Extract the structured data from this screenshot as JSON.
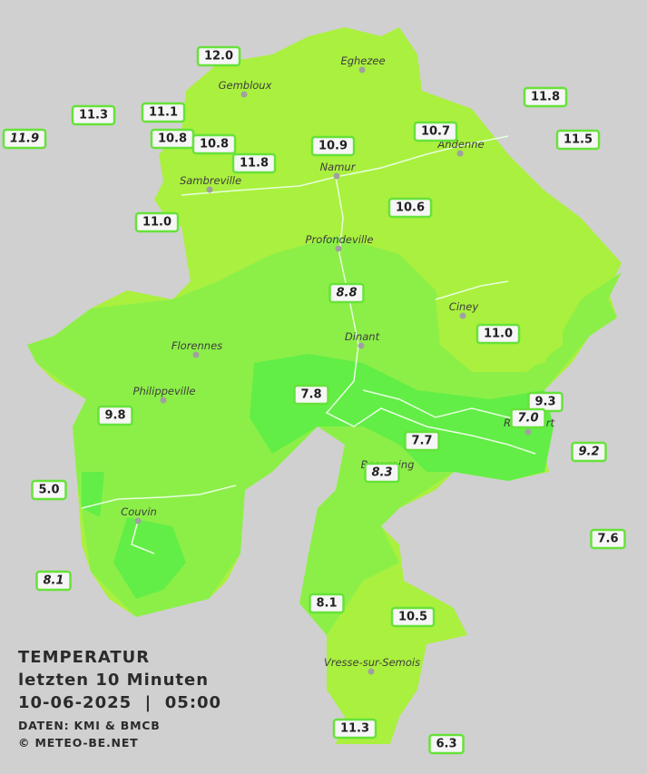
{
  "header": {
    "lines": [
      "TEMPERATUR",
      "letzten 10 Minuten",
      "10-06-2025  |  05:00"
    ],
    "source": "DATEN: KMI & BMCB",
    "copyright": "© METEO-BE.NET"
  },
  "cities": [
    "Eghezee",
    "Gembloux",
    "Andenne",
    "Namur",
    "Sambreville",
    "Profondeville",
    "Ciney",
    "Dinant",
    "Florennes",
    "Philippeville",
    "Rochefort",
    "Beauraing",
    "Couvin",
    "Vresse-sur-Semois"
  ],
  "stations": [
    {
      "text": "12.0"
    },
    {
      "text": "11.3"
    },
    {
      "text": "11.9",
      "italic": true
    },
    {
      "text": "11.1"
    },
    {
      "text": "10.8"
    },
    {
      "text": "10.8"
    },
    {
      "text": "11.8"
    },
    {
      "text": "10.9"
    },
    {
      "text": "10.7"
    },
    {
      "text": "11.8"
    },
    {
      "text": "11.5"
    },
    {
      "text": "11.0"
    },
    {
      "text": "10.6"
    },
    {
      "text": "8.8",
      "italic": true
    },
    {
      "text": "11.0"
    },
    {
      "text": "7.8"
    },
    {
      "text": "9.3"
    },
    {
      "text": "7.0",
      "italic": true
    },
    {
      "text": "9.8"
    },
    {
      "text": "7.7"
    },
    {
      "text": "9.2",
      "italic": true
    },
    {
      "text": "8.3",
      "italic": true
    },
    {
      "text": "5.0"
    },
    {
      "text": "7.6"
    },
    {
      "text": "8.1",
      "italic": true
    },
    {
      "text": "8.1"
    },
    {
      "text": "10.5"
    },
    {
      "text": "11.3"
    },
    {
      "text": "6.3"
    }
  ]
}
